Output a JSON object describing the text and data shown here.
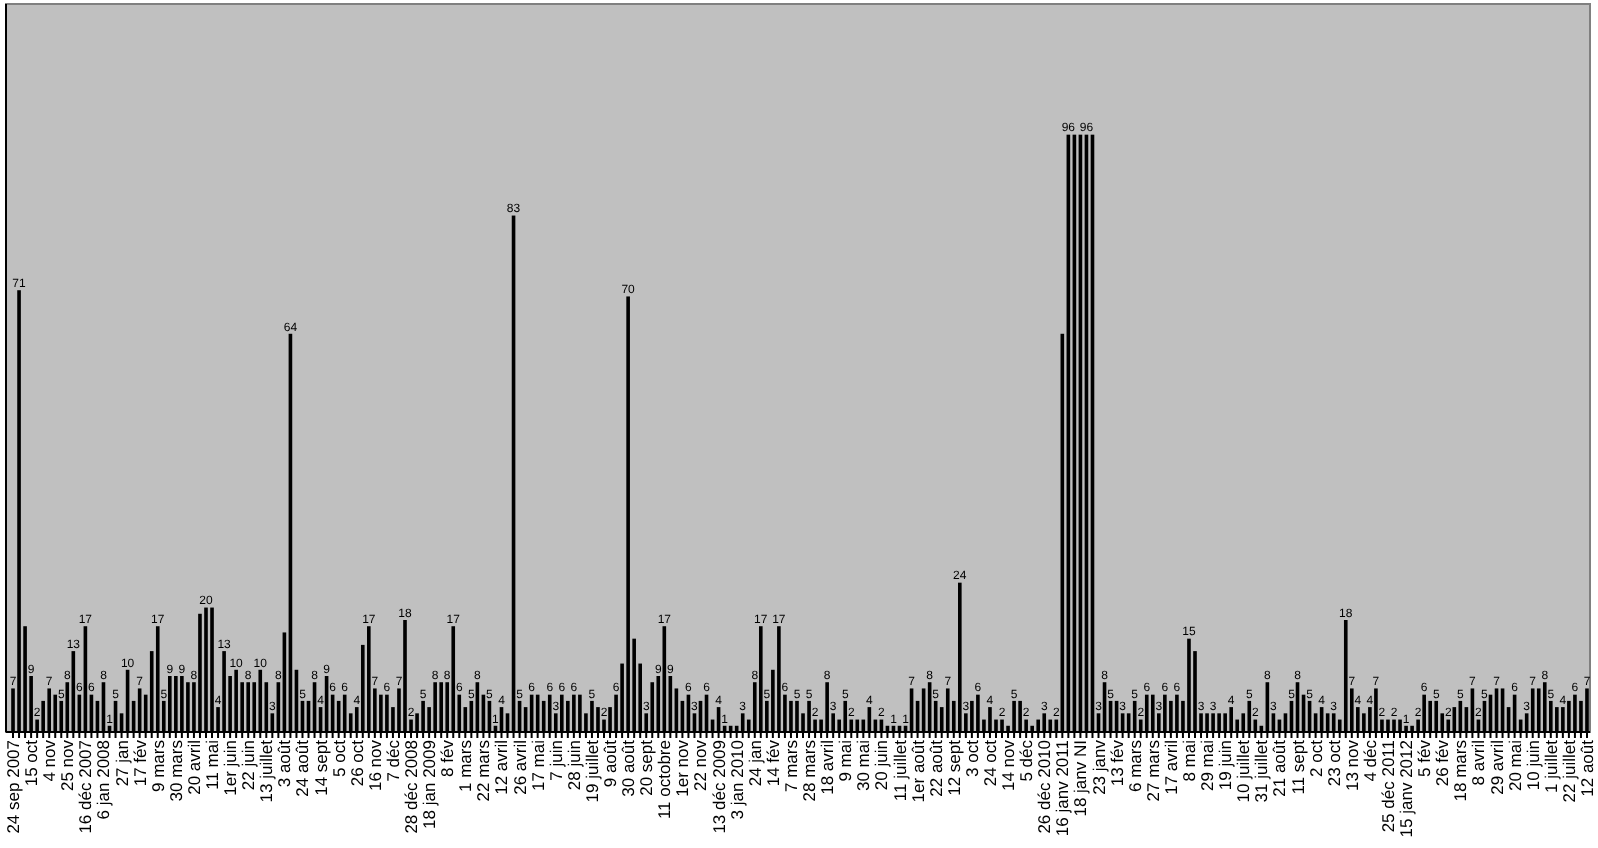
{
  "chart_data": {
    "type": "bar",
    "color": "#000000",
    "ylim": [
      0,
      117
    ],
    "tick_labels": "x",
    "categories": [
      "24 sep 2007",
      null,
      null,
      "15 oct",
      null,
      null,
      "4 nov",
      null,
      null,
      "25 nov",
      null,
      null,
      "16 déc 2007",
      null,
      null,
      "6 jan 2008",
      null,
      null,
      "27 jan",
      null,
      null,
      "17 fév",
      null,
      null,
      "9 mars",
      null,
      null,
      "30 mars",
      null,
      null,
      "20 avril",
      null,
      null,
      "11 mai",
      null,
      null,
      "1er juin",
      null,
      null,
      "22 juin",
      null,
      null,
      "13 juillet",
      null,
      null,
      "3 août",
      null,
      null,
      "24 août",
      null,
      null,
      "14 sept",
      null,
      null,
      "5 oct",
      null,
      null,
      "26 oct",
      null,
      null,
      "16 nov",
      null,
      null,
      "7 déc",
      null,
      null,
      "28 déc 2008",
      null,
      null,
      "18 jan 2009",
      null,
      null,
      "8 fév",
      null,
      null,
      "1 mars",
      null,
      null,
      "22 mars",
      null,
      null,
      "12 avril",
      null,
      null,
      "26 avril",
      null,
      null,
      "17 mai",
      null,
      null,
      "7 juin",
      null,
      null,
      "28 juin",
      null,
      null,
      "19 juillet",
      null,
      null,
      "9 août",
      null,
      null,
      "30 août",
      null,
      null,
      "20 sept",
      null,
      null,
      "11 octobre",
      null,
      null,
      "1er nov",
      null,
      null,
      "22 nov",
      null,
      null,
      "13 déc 2009",
      null,
      null,
      "3 jan 2010",
      null,
      null,
      "24 jan",
      null,
      null,
      "14 fév",
      null,
      null,
      "7 mars",
      null,
      null,
      "28 mars",
      null,
      null,
      "18 avril",
      null,
      null,
      "9 mai",
      null,
      null,
      "30 mai",
      null,
      null,
      "20 juin",
      null,
      null,
      "11 juillet",
      null,
      null,
      "1er août",
      null,
      null,
      "22 août",
      null,
      null,
      "12 sept",
      null,
      null,
      "3 oct",
      null,
      null,
      "24 oct",
      null,
      null,
      "14 nov",
      null,
      null,
      "5 déc",
      null,
      null,
      "26 déc 2010",
      null,
      null,
      "16 janv 2011",
      null,
      null,
      "18 janv NI",
      null,
      null,
      "23 janv",
      null,
      null,
      "13 fév",
      null,
      null,
      "6 mars",
      null,
      null,
      "27 mars",
      null,
      null,
      "17 avril",
      null,
      null,
      "8 mai",
      null,
      null,
      "29 mai",
      null,
      null,
      "19 juin",
      null,
      null,
      "10 juillet",
      null,
      null,
      "31 juillet",
      null,
      null,
      "21 août",
      null,
      null,
      "11 sept",
      null,
      null,
      "2 oct",
      null,
      null,
      "23 oct",
      null,
      null,
      "13 nov",
      null,
      null,
      "4 déc",
      null,
      null,
      "25 déc 2011",
      null,
      null,
      "15 janv 2012",
      null,
      null,
      "5 fév",
      null,
      null,
      "26 fév",
      null,
      null,
      "18 mars",
      null,
      null,
      "8 avril",
      null,
      null,
      "29 avril",
      null,
      null,
      "20 mai",
      null,
      null,
      "10 juin",
      null,
      null,
      "1 juillet",
      null,
      null,
      "22 juillet",
      null,
      null,
      "12 août"
    ],
    "values": [
      7,
      71,
      17,
      9,
      2,
      5,
      7,
      6,
      5,
      8,
      13,
      6,
      17,
      6,
      5,
      8,
      1,
      5,
      3,
      10,
      5,
      7,
      6,
      13,
      17,
      5,
      9,
      9,
      9,
      8,
      8,
      19,
      20,
      20,
      4,
      13,
      9,
      10,
      8,
      8,
      8,
      10,
      8,
      3,
      8,
      16,
      64,
      10,
      5,
      5,
      8,
      4,
      9,
      6,
      5,
      6,
      3,
      4,
      14,
      17,
      7,
      6,
      6,
      4,
      7,
      18,
      2,
      3,
      5,
      4,
      8,
      8,
      8,
      17,
      6,
      4,
      5,
      8,
      6,
      5,
      1,
      4,
      3,
      83,
      5,
      4,
      6,
      6,
      5,
      6,
      3,
      6,
      5,
      6,
      6,
      3,
      5,
      4,
      2,
      4,
      6,
      11,
      70,
      15,
      11,
      3,
      8,
      9,
      17,
      9,
      7,
      5,
      6,
      3,
      5,
      6,
      2,
      4,
      1,
      1,
      1,
      3,
      2,
      8,
      17,
      5,
      10,
      17,
      6,
      5,
      5,
      3,
      5,
      2,
      2,
      8,
      3,
      2,
      5,
      2,
      2,
      2,
      4,
      2,
      2,
      1,
      1,
      1,
      1,
      7,
      5,
      7,
      8,
      5,
      4,
      7,
      5,
      24,
      3,
      5,
      6,
      2,
      4,
      2,
      2,
      1,
      5,
      5,
      2,
      1,
      2,
      3,
      2,
      2,
      64,
      96,
      96,
      96,
      96,
      96,
      3,
      8,
      5,
      5,
      3,
      3,
      5,
      2,
      6,
      6,
      3,
      6,
      5,
      6,
      5,
      15,
      13,
      3,
      3,
      3,
      3,
      3,
      4,
      2,
      3,
      5,
      2,
      1,
      8,
      3,
      2,
      3,
      5,
      8,
      6,
      5,
      3,
      4,
      3,
      3,
      2,
      18,
      7,
      4,
      3,
      4,
      7,
      2,
      2,
      2,
      2,
      1,
      1,
      2,
      6,
      5,
      5,
      3,
      2,
      4,
      5,
      4,
      7,
      2,
      5,
      6,
      7,
      7,
      4,
      6,
      2,
      3,
      7,
      7,
      8,
      5,
      4,
      4,
      5,
      6,
      5,
      7
    ],
    "value_labels": [
      "7",
      "71",
      null,
      "9",
      "2",
      null,
      "7",
      null,
      "5",
      "8",
      "13",
      "6",
      "17",
      "6",
      null,
      "8",
      "1",
      "5",
      null,
      "10",
      null,
      "7",
      null,
      null,
      "17",
      "5",
      "9",
      null,
      "9",
      null,
      "8",
      null,
      "20",
      null,
      "4",
      "13",
      null,
      "10",
      null,
      "8",
      null,
      "10",
      null,
      "3",
      "8",
      null,
      "64",
      null,
      "5",
      null,
      "8",
      "4",
      "9",
      "6",
      null,
      "6",
      null,
      "4",
      null,
      "17",
      "7",
      null,
      "6",
      null,
      "7",
      "18",
      "2",
      null,
      "5",
      null,
      "8",
      null,
      "8",
      "17",
      "6",
      null,
      "5",
      "8",
      null,
      "5",
      "1",
      "4",
      null,
      "83",
      "5",
      null,
      "6",
      null,
      null,
      "6",
      "3",
      "6",
      null,
      "6",
      null,
      null,
      "5",
      null,
      "2",
      null,
      "6",
      null,
      "70",
      null,
      null,
      "3",
      null,
      "9",
      "17",
      "9",
      null,
      null,
      "6",
      "3",
      null,
      "6",
      null,
      "4",
      "1",
      null,
      null,
      "3",
      null,
      "8",
      "17",
      "5",
      null,
      "17",
      "6",
      null,
      "5",
      null,
      "5",
      "2",
      null,
      "8",
      "3",
      null,
      "5",
      "2",
      null,
      null,
      "4",
      null,
      "2",
      null,
      "1",
      null,
      "1",
      "7",
      null,
      null,
      "8",
      "5",
      null,
      "7",
      null,
      "24",
      "3",
      null,
      "6",
      null,
      "4",
      null,
      "2",
      null,
      "5",
      null,
      "2",
      null,
      null,
      "3",
      null,
      "2",
      null,
      "96",
      null,
      null,
      "96",
      null,
      "3",
      "8",
      "5",
      null,
      "3",
      null,
      "5",
      "2",
      "6",
      null,
      "3",
      "6",
      null,
      "6",
      null,
      "15",
      null,
      "3",
      null,
      "3",
      null,
      null,
      "4",
      null,
      null,
      "5",
      "2",
      null,
      "8",
      "3",
      null,
      null,
      "5",
      "8",
      null,
      "5",
      null,
      "4",
      null,
      "3",
      null,
      "18",
      "7",
      "4",
      null,
      "4",
      "7",
      "2",
      null,
      "2",
      null,
      "1",
      null,
      "2",
      "6",
      null,
      "5",
      null,
      "2",
      null,
      "5",
      null,
      "7",
      "2",
      "5",
      null,
      "7",
      null,
      null,
      "6",
      null,
      "3",
      "7",
      null,
      "8",
      "5",
      null,
      "4",
      null,
      "6",
      null,
      "7"
    ]
  }
}
